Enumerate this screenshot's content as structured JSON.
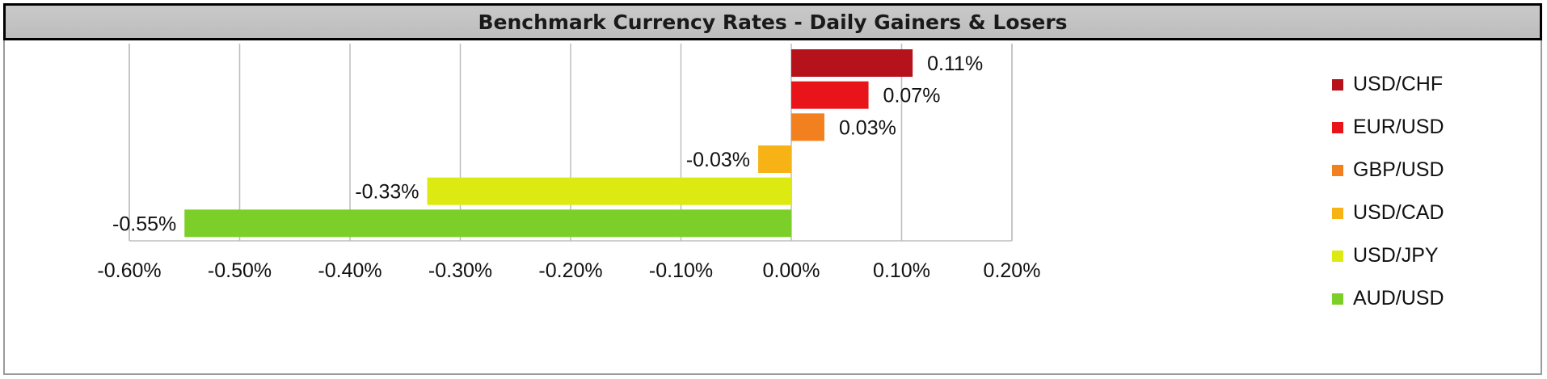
{
  "chart_data": {
    "type": "bar",
    "orientation": "horizontal",
    "title": "Benchmark Currency Rates - Daily Gainers & Losers",
    "xlabel": "",
    "ylabel": "",
    "xlim": [
      -0.006,
      0.002
    ],
    "x_ticks": [
      -0.006,
      -0.005,
      -0.004,
      -0.003,
      -0.002,
      -0.001,
      0,
      0.001,
      0.002
    ],
    "x_tick_labels": [
      "-0.60%",
      "-0.50%",
      "-0.40%",
      "-0.30%",
      "-0.20%",
      "-0.10%",
      "0.00%",
      "0.10%",
      "0.20%"
    ],
    "grid": "vertical",
    "legend_position": "right",
    "categories": [
      "USD/CHF",
      "EUR/USD",
      "GBP/USD",
      "USD/CAD",
      "USD/JPY",
      "AUD/USD"
    ],
    "values": [
      0.0011,
      0.0007,
      0.0003,
      -0.0003,
      -0.0033,
      -0.0055
    ],
    "data_labels": [
      "0.11%",
      "0.07%",
      "0.03%",
      "-0.03%",
      "-0.33%",
      "-0.55%"
    ],
    "colors": [
      "#b5121b",
      "#e8141a",
      "#f3801f",
      "#f7b215",
      "#dcea12",
      "#7ccf29"
    ]
  }
}
